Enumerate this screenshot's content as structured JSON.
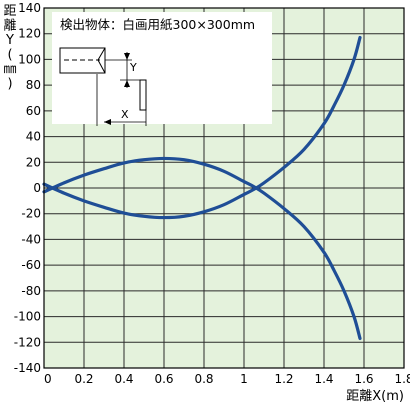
{
  "chart_data": {
    "type": "line",
    "title": "",
    "annotation": "検出物体：白画用紙300×300mm",
    "xlabel": "距離X(m)",
    "ylabel_chars": [
      "距",
      "離",
      "Y",
      "(",
      "㎜",
      ")"
    ],
    "xlim": [
      0,
      1.8
    ],
    "ylim": [
      -140,
      140
    ],
    "x_ticks": [
      "0",
      "0.2",
      "0.4",
      "0.6",
      "0.8",
      "1",
      "1.2",
      "1.4",
      "1.6",
      "1.8"
    ],
    "y_ticks": [
      "140",
      "120",
      "100",
      "80",
      "60",
      "40",
      "20",
      "0",
      "-20",
      "-40",
      "-60",
      "-80",
      "-100",
      "-120",
      "-140"
    ],
    "grid": true,
    "colors": {
      "background": "#e4f2dc",
      "grid": "#2a2a2a",
      "series": "#1f4e96"
    },
    "series": [
      {
        "x": [
          0,
          0.1,
          0.2,
          0.3,
          0.4,
          0.5,
          0.6,
          0.7,
          0.8,
          0.9,
          1.0,
          1.05,
          1.1,
          1.2,
          1.3,
          1.4,
          1.45,
          1.5,
          1.55,
          1.58
        ],
        "values": [
          -3,
          4,
          10,
          15,
          19.5,
          22,
          23,
          22,
          18.5,
          13,
          5,
          1,
          -4,
          -16,
          -30,
          -50,
          -64,
          -80,
          -100,
          -117
        ]
      },
      {
        "x": [
          0,
          0.1,
          0.2,
          0.3,
          0.4,
          0.5,
          0.6,
          0.7,
          0.8,
          0.9,
          1.0,
          1.05,
          1.1,
          1.2,
          1.3,
          1.4,
          1.45,
          1.5,
          1.55,
          1.58
        ],
        "values": [
          3,
          -4,
          -10,
          -15,
          -19.5,
          -22,
          -23,
          -22,
          -18.5,
          -13,
          -5,
          -1,
          4,
          16,
          30,
          50,
          64,
          80,
          100,
          117
        ]
      }
    ],
    "inset": {
      "y_label": "Y",
      "x_label": "X"
    }
  }
}
